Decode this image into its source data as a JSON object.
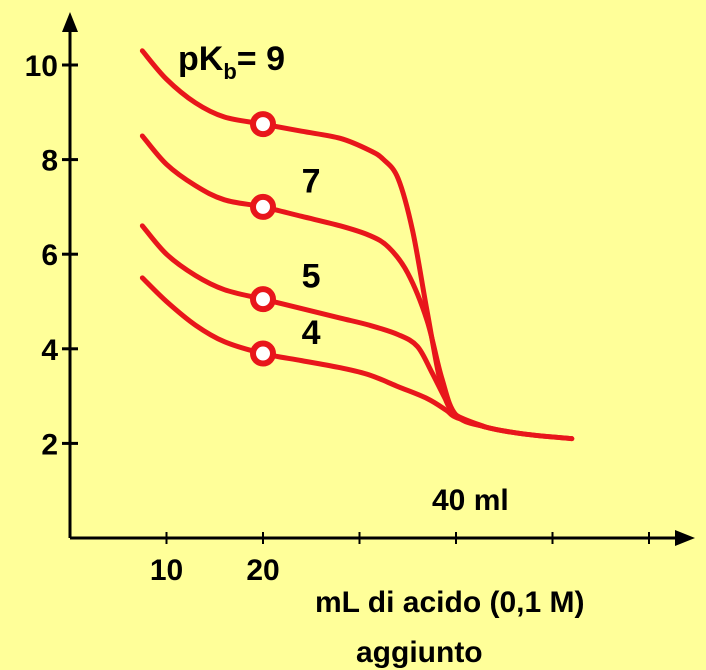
{
  "chart_data": {
    "type": "line",
    "title_prefix": "pK",
    "title_sub": "b",
    "title_suffix": "= 9",
    "xlabel": "mL di acido (0,1 M)",
    "xlabel_line2": "aggiunto",
    "ylabel": "",
    "xlim": [
      0,
      62
    ],
    "ylim": [
      0,
      11.5
    ],
    "x_ticks": [
      10,
      20,
      30,
      40,
      50,
      60
    ],
    "x_tick_labels": [
      "10",
      "20",
      "",
      "",
      "",
      ""
    ],
    "y_ticks": [
      2,
      4,
      6,
      8,
      10
    ],
    "y_tick_labels": [
      "2",
      "4",
      "6",
      "8",
      "10"
    ],
    "grid": false,
    "equivalence_label": "40 ml",
    "line_color": "#E8161B",
    "point_fill": "#FFFFFF",
    "axis_color": "#000000",
    "series": [
      {
        "name": "9",
        "x": [
          7.5,
          10,
          13,
          16,
          20,
          24,
          28,
          31,
          32.5,
          34,
          35.5,
          37,
          38.5,
          40,
          43,
          47,
          52
        ],
        "y": [
          10.3,
          9.7,
          9.2,
          8.9,
          8.75,
          8.6,
          8.45,
          8.2,
          8.0,
          7.6,
          6.5,
          4.8,
          3.2,
          2.6,
          2.35,
          2.2,
          2.1
        ]
      },
      {
        "name": "7",
        "x": [
          7.5,
          10,
          13,
          16,
          20,
          24,
          28,
          31,
          33,
          35,
          37,
          38.5,
          40,
          43,
          47,
          52
        ],
        "y": [
          8.5,
          7.9,
          7.45,
          7.15,
          7.0,
          6.8,
          6.6,
          6.4,
          6.15,
          5.6,
          4.6,
          3.4,
          2.6,
          2.35,
          2.2,
          2.1
        ]
      },
      {
        "name": "5",
        "x": [
          7.5,
          10,
          13,
          16,
          20,
          24,
          28,
          31,
          34,
          36,
          37.5,
          39,
          40,
          43
        ],
        "y": [
          6.6,
          6.0,
          5.55,
          5.25,
          5.05,
          4.85,
          4.65,
          4.5,
          4.3,
          4.05,
          3.5,
          2.9,
          2.6,
          2.35
        ]
      },
      {
        "name": "4",
        "x": [
          7.5,
          10,
          13,
          16,
          20,
          24,
          28,
          31,
          34,
          37,
          39,
          40,
          43
        ],
        "y": [
          5.5,
          5.0,
          4.5,
          4.15,
          3.9,
          3.75,
          3.6,
          3.45,
          3.2,
          2.95,
          2.7,
          2.55,
          2.35
        ]
      }
    ],
    "marker_x": 20,
    "markers": [
      {
        "series": "9",
        "y": 8.75
      },
      {
        "series": "7",
        "y": 7.0
      },
      {
        "series": "5",
        "y": 5.05
      },
      {
        "series": "4",
        "y": 3.9
      }
    ],
    "series_labels": [
      {
        "text": "7",
        "x": 24,
        "y": 7.3
      },
      {
        "text": "5",
        "x": 24,
        "y": 5.3
      },
      {
        "text": "4",
        "x": 24,
        "y": 4.1
      }
    ]
  }
}
